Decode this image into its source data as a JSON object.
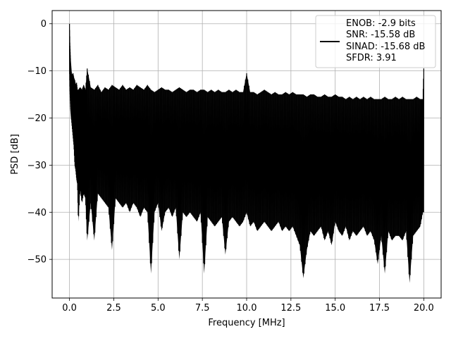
{
  "chart_data": {
    "type": "line",
    "xlabel": "Frequency [MHz]",
    "ylabel": "PSD [dB]",
    "xlim": [
      -0.98,
      20.98
    ],
    "ylim": [
      -58.2,
      2.8
    ],
    "grid": true,
    "legend_position": "top-right",
    "x_ticks": [
      0.0,
      2.5,
      5.0,
      7.5,
      10.0,
      12.5,
      15.0,
      17.5,
      20.0
    ],
    "x_tick_labels": [
      "0.0",
      "2.5",
      "5.0",
      "7.5",
      "10.0",
      "12.5",
      "15.0",
      "17.5",
      "20.0"
    ],
    "y_ticks": [
      0,
      -10,
      -20,
      -30,
      -40,
      -50
    ],
    "y_tick_labels": [
      "0",
      "−10",
      "−20",
      "−30",
      "−40",
      "−50"
    ],
    "legend": {
      "lines": [
        "ENOB: -2.9 bits",
        "SNR: -15.58 dB",
        "SINAD: -15.68 dB",
        "SFDR: 3.91"
      ],
      "color": "#000000"
    },
    "series": [
      {
        "color": "#000000",
        "x": [
          0.0,
          0.02,
          0.04,
          0.06,
          0.08,
          0.1,
          0.15,
          0.2,
          0.25,
          0.3,
          0.35,
          0.4,
          0.45,
          0.5,
          0.6,
          0.7,
          0.8,
          0.9,
          1.0,
          1.2,
          1.4,
          1.6,
          1.8,
          2.0,
          2.2,
          2.4,
          2.6,
          2.8,
          3.0,
          3.2,
          3.4,
          3.6,
          3.8,
          4.0,
          4.2,
          4.4,
          4.6,
          4.8,
          5.0,
          5.2,
          5.4,
          5.6,
          5.8,
          6.0,
          6.2,
          6.4,
          6.6,
          6.8,
          7.0,
          7.2,
          7.4,
          7.6,
          7.8,
          8.0,
          8.2,
          8.4,
          8.6,
          8.8,
          9.0,
          9.2,
          9.4,
          9.6,
          9.8,
          10.0,
          10.2,
          10.4,
          10.6,
          10.8,
          11.0,
          11.2,
          11.4,
          11.6,
          11.8,
          12.0,
          12.2,
          12.4,
          12.6,
          12.8,
          13.0,
          13.2,
          13.4,
          13.6,
          13.8,
          14.0,
          14.2,
          14.4,
          14.6,
          14.8,
          15.0,
          15.2,
          15.4,
          15.6,
          15.8,
          16.0,
          16.2,
          16.4,
          16.6,
          16.8,
          17.0,
          17.2,
          17.4,
          17.6,
          17.8,
          18.0,
          18.2,
          18.4,
          18.6,
          18.8,
          19.0,
          19.2,
          19.4,
          19.6,
          19.8,
          19.95,
          20.0
        ],
        "upper": [
          0.0,
          -4.0,
          -6.0,
          -8.0,
          -9.0,
          -10.0,
          -11.0,
          -10.5,
          -11.5,
          -12.0,
          -13.0,
          -12.5,
          -14.0,
          -14.0,
          -13.5,
          -14.0,
          -13.0,
          -14.0,
          -9.5,
          -13.5,
          -14.0,
          -13.0,
          -14.5,
          -13.5,
          -14.0,
          -13.0,
          -13.5,
          -14.0,
          -13.0,
          -14.0,
          -13.5,
          -14.0,
          -13.0,
          -13.5,
          -14.0,
          -13.0,
          -14.0,
          -14.5,
          -14.0,
          -13.5,
          -14.0,
          -14.0,
          -14.5,
          -14.0,
          -13.5,
          -14.0,
          -14.5,
          -14.0,
          -14.0,
          -14.5,
          -14.0,
          -14.0,
          -14.5,
          -14.0,
          -14.5,
          -14.0,
          -14.5,
          -14.5,
          -14.0,
          -14.5,
          -14.0,
          -14.5,
          -14.5,
          -10.5,
          -14.5,
          -14.5,
          -15.0,
          -14.5,
          -14.0,
          -14.5,
          -15.0,
          -14.5,
          -15.0,
          -15.0,
          -14.5,
          -15.0,
          -14.5,
          -15.0,
          -15.0,
          -15.0,
          -15.5,
          -15.0,
          -15.0,
          -15.5,
          -15.5,
          -15.0,
          -15.5,
          -15.5,
          -15.0,
          -15.5,
          -15.5,
          -16.0,
          -15.5,
          -16.0,
          -15.5,
          -16.0,
          -15.5,
          -16.0,
          -15.5,
          -16.0,
          -16.0,
          -16.0,
          -15.5,
          -16.0,
          -16.0,
          -15.5,
          -16.0,
          -15.5,
          -16.0,
          -16.0,
          -16.0,
          -15.5,
          -16.0,
          -16.0,
          -9.5
        ],
        "lower": [
          -10.0,
          -14.0,
          -16.0,
          -18.0,
          -19.0,
          -20.0,
          -22.0,
          -24.0,
          -26.0,
          -30.0,
          -31.0,
          -33.0,
          -34.0,
          -42.0,
          -35.0,
          -38.0,
          -36.0,
          -37.0,
          -46.0,
          -38.0,
          -46.0,
          -36.0,
          -37.0,
          -38.0,
          -39.0,
          -48.0,
          -37.0,
          -38.0,
          -39.0,
          -38.0,
          -40.0,
          -38.0,
          -39.0,
          -41.0,
          -39.0,
          -40.0,
          -53.0,
          -40.0,
          -38.0,
          -44.0,
          -40.0,
          -39.0,
          -41.0,
          -39.0,
          -50.0,
          -40.0,
          -41.0,
          -40.0,
          -41.0,
          -42.0,
          -40.0,
          -53.0,
          -41.0,
          -42.0,
          -43.0,
          -42.0,
          -41.0,
          -49.0,
          -42.0,
          -41.0,
          -42.0,
          -43.0,
          -42.0,
          -40.0,
          -43.0,
          -42.0,
          -44.0,
          -43.0,
          -42.0,
          -43.0,
          -44.0,
          -43.0,
          -42.0,
          -44.0,
          -43.0,
          -44.0,
          -43.0,
          -45.0,
          -47.0,
          -54.0,
          -48.0,
          -44.0,
          -45.0,
          -44.0,
          -43.0,
          -46.0,
          -44.0,
          -47.0,
          -42.0,
          -44.0,
          -45.0,
          -43.0,
          -46.0,
          -44.0,
          -45.0,
          -44.0,
          -43.0,
          -45.0,
          -44.0,
          -46.0,
          -51.0,
          -45.0,
          -53.0,
          -44.0,
          -46.0,
          -45.0,
          -45.0,
          -46.0,
          -44.0,
          -55.0,
          -45.0,
          -44.0,
          -43.0,
          -40.0,
          -40.0
        ]
      }
    ]
  }
}
